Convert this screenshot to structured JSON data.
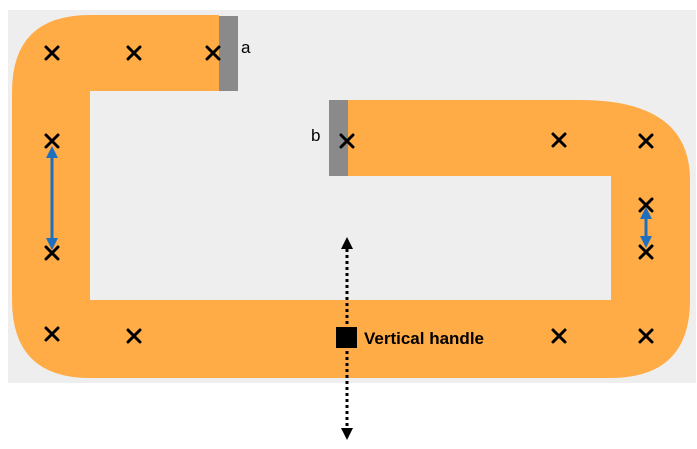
{
  "labels": {
    "port_a": "a",
    "port_b": "b",
    "handle": "Vertical handle"
  },
  "colors": {
    "canvas_bg": "#eeeeee",
    "path_fill": "#ffac47",
    "port_fill": "#8a8a8a",
    "marker": "#000000",
    "stretch_arrow": "#1f6fbf",
    "handle": "#000000"
  },
  "icons": {
    "waypoint": "x-marker-icon",
    "stretch": "double-headed-arrow-icon",
    "handle": "square-handle-icon",
    "drag_direction": "dotted-vertical-double-arrow-icon"
  }
}
